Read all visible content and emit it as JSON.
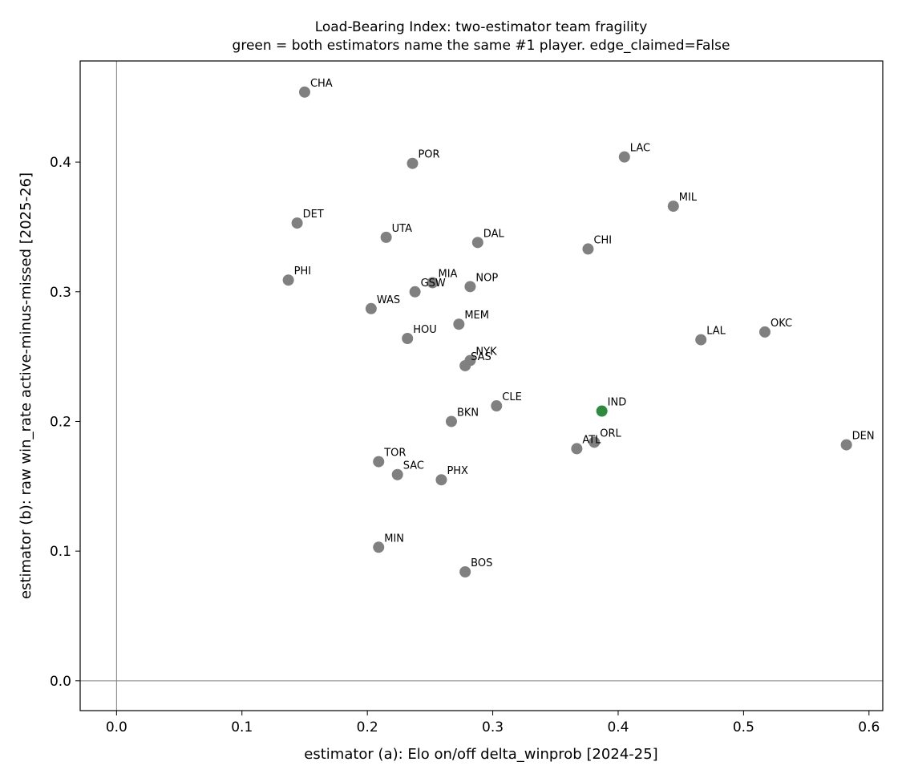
{
  "chart_data": {
    "type": "scatter",
    "title": "Load-Bearing Index: two-estimator team fragility",
    "subtitle": "green = both estimators name the same #1 player. edge_claimed=False",
    "xlabel": "estimator (a): Elo on/off delta_winprob  [2024-25]",
    "ylabel": "estimator (b): raw win_rate active-minus-missed  [2025-26]",
    "xlim": [
      -0.029,
      0.611
    ],
    "ylim": [
      -0.023,
      0.478
    ],
    "xticks": [
      0.0,
      0.1,
      0.2,
      0.3,
      0.4,
      0.5,
      0.6
    ],
    "xtick_labels": [
      "0.0",
      "0.1",
      "0.2",
      "0.3",
      "0.4",
      "0.5",
      "0.6"
    ],
    "yticks": [
      0.0,
      0.1,
      0.2,
      0.3,
      0.4
    ],
    "ytick_labels": [
      "0.0",
      "0.1",
      "0.2",
      "0.3",
      "0.4"
    ],
    "reference_lines": {
      "x": 0,
      "y": 0
    },
    "grid": false,
    "colors": {
      "default": "#808080",
      "match": "#2e8b3e",
      "reference": "#808080"
    },
    "points": [
      {
        "label": "CHA",
        "x": 0.15,
        "y": 0.454,
        "match": false
      },
      {
        "label": "POR",
        "x": 0.236,
        "y": 0.399,
        "match": false
      },
      {
        "label": "LAC",
        "x": 0.405,
        "y": 0.404,
        "match": false
      },
      {
        "label": "MIL",
        "x": 0.444,
        "y": 0.366,
        "match": false
      },
      {
        "label": "DET",
        "x": 0.144,
        "y": 0.353,
        "match": false
      },
      {
        "label": "UTA",
        "x": 0.215,
        "y": 0.342,
        "match": false
      },
      {
        "label": "DAL",
        "x": 0.288,
        "y": 0.338,
        "match": false
      },
      {
        "label": "CHI",
        "x": 0.376,
        "y": 0.333,
        "match": false
      },
      {
        "label": "PHI",
        "x": 0.137,
        "y": 0.309,
        "match": false
      },
      {
        "label": "MIA",
        "x": 0.252,
        "y": 0.307,
        "match": false
      },
      {
        "label": "GSW",
        "x": 0.238,
        "y": 0.3,
        "match": false
      },
      {
        "label": "NOP",
        "x": 0.282,
        "y": 0.304,
        "match": false
      },
      {
        "label": "WAS",
        "x": 0.203,
        "y": 0.287,
        "match": false
      },
      {
        "label": "MEM",
        "x": 0.273,
        "y": 0.275,
        "match": false
      },
      {
        "label": "HOU",
        "x": 0.232,
        "y": 0.264,
        "match": false
      },
      {
        "label": "LAL",
        "x": 0.466,
        "y": 0.263,
        "match": false
      },
      {
        "label": "OKC",
        "x": 0.517,
        "y": 0.269,
        "match": false
      },
      {
        "label": "NYK",
        "x": 0.282,
        "y": 0.247,
        "match": false
      },
      {
        "label": "SAS",
        "x": 0.278,
        "y": 0.243,
        "match": false
      },
      {
        "label": "CLE",
        "x": 0.303,
        "y": 0.212,
        "match": false
      },
      {
        "label": "IND",
        "x": 0.387,
        "y": 0.208,
        "match": true
      },
      {
        "label": "BKN",
        "x": 0.267,
        "y": 0.2,
        "match": false
      },
      {
        "label": "ORL",
        "x": 0.381,
        "y": 0.184,
        "match": false
      },
      {
        "label": "ATL",
        "x": 0.367,
        "y": 0.179,
        "match": false
      },
      {
        "label": "DEN",
        "x": 0.582,
        "y": 0.182,
        "match": false
      },
      {
        "label": "TOR",
        "x": 0.209,
        "y": 0.169,
        "match": false
      },
      {
        "label": "SAC",
        "x": 0.224,
        "y": 0.159,
        "match": false
      },
      {
        "label": "PHX",
        "x": 0.259,
        "y": 0.155,
        "match": false
      },
      {
        "label": "MIN",
        "x": 0.209,
        "y": 0.103,
        "match": false
      },
      {
        "label": "BOS",
        "x": 0.278,
        "y": 0.084,
        "match": false
      }
    ]
  }
}
